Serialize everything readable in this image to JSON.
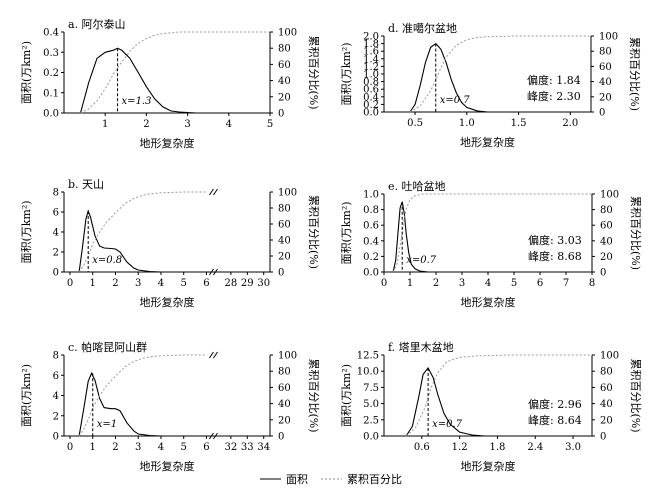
{
  "legend": {
    "area_label": "面积",
    "cum_label": "累积百分比"
  },
  "chart_data": [
    {
      "id": "a",
      "type": "line",
      "title": "a. 阿尔泰山",
      "xlabel": "地形复杂度",
      "ylabel": "面积(万km²)",
      "y2label": "累积百分比(%)",
      "xlim": [
        0,
        5
      ],
      "ylim": [
        0,
        0.4
      ],
      "y2lim": [
        0,
        100
      ],
      "xticks": [
        1,
        2,
        3,
        4,
        5
      ],
      "xtick_labels": [
        "1",
        "2",
        "3",
        "4",
        "5"
      ],
      "yticks": [
        0,
        0.1,
        0.2,
        0.3,
        0.4
      ],
      "ytick_labels": [
        "0.0",
        "0.1",
        "0.2",
        "0.3",
        "0.4"
      ],
      "y2ticks": [
        0,
        20,
        40,
        60,
        80,
        100
      ],
      "peak_x": 1.3,
      "peak_label": "x=1.3",
      "series": [
        {
          "name": "面积",
          "x": [
            0.4,
            0.6,
            0.8,
            1.0,
            1.2,
            1.3,
            1.4,
            1.6,
            1.8,
            2.0,
            2.2,
            2.4,
            2.6,
            2.8,
            3.0,
            3.2
          ],
          "y": [
            0,
            0.15,
            0.27,
            0.3,
            0.31,
            0.32,
            0.31,
            0.27,
            0.2,
            0.13,
            0.07,
            0.03,
            0.01,
            0.005,
            0.002,
            0
          ]
        },
        {
          "name": "累积百分比",
          "x": [
            0.4,
            0.6,
            0.8,
            1.0,
            1.2,
            1.4,
            1.6,
            1.8,
            2.0,
            2.2,
            2.4,
            2.6,
            2.8,
            3.0,
            4.0,
            5.0
          ],
          "y": [
            0,
            5,
            15,
            30,
            48,
            63,
            76,
            86,
            92,
            96,
            98,
            99,
            100,
            100,
            100,
            100
          ],
          "y_axis": "right"
        }
      ]
    },
    {
      "id": "b",
      "type": "line",
      "title": "b. 天山",
      "xlabel": "地形复杂度",
      "ylabel": "面积(万km²)",
      "y2label": "累积百分比(%)",
      "ylim": [
        0,
        8
      ],
      "y2lim": [
        0,
        100
      ],
      "xticks_labels": [
        "0",
        "1",
        "2",
        "3",
        "4",
        "5",
        "6",
        "28",
        "29",
        "30"
      ],
      "yticks": [
        0,
        2,
        4,
        6,
        8
      ],
      "y2ticks": [
        0,
        20,
        40,
        60,
        80,
        100
      ],
      "axis_break": true,
      "peak_x": 0.8,
      "peak_label": "x=0.8",
      "series": [
        {
          "name": "面积",
          "x": [
            0.4,
            0.55,
            0.7,
            0.8,
            0.9,
            1.1,
            1.3,
            1.5,
            1.8,
            2.0,
            2.2,
            2.5,
            2.8,
            3.0,
            3.5,
            4.0
          ],
          "y": [
            0,
            2.5,
            5.3,
            6.1,
            5.5,
            3.6,
            2.6,
            2.4,
            2.35,
            2.3,
            2.0,
            1.0,
            0.4,
            0.2,
            0.05,
            0
          ]
        },
        {
          "name": "累积百分比",
          "x": [
            0.4,
            0.6,
            0.8,
            1.0,
            1.3,
            1.6,
            2.0,
            2.4,
            2.8,
            3.2,
            3.6,
            4.0,
            5.0,
            6.0
          ],
          "y": [
            0,
            8,
            20,
            35,
            50,
            62,
            74,
            85,
            92,
            96,
            98,
            99,
            100,
            100
          ],
          "y_axis": "right"
        }
      ]
    },
    {
      "id": "c",
      "type": "line",
      "title": "c. 帕喀昆阿山群",
      "xlabel": "地形复杂度",
      "ylabel": "面积(万km²)",
      "y2label": "累积百分比(%)",
      "ylim": [
        0,
        8
      ],
      "y2lim": [
        0,
        100
      ],
      "xticks_labels": [
        "0",
        "1",
        "2",
        "3",
        "4",
        "5",
        "6",
        "32",
        "33",
        "34"
      ],
      "yticks": [
        0,
        2,
        4,
        6,
        8
      ],
      "y2ticks": [
        0,
        20,
        40,
        60,
        80,
        100
      ],
      "axis_break": true,
      "peak_x": 1,
      "peak_label": "x=1",
      "series": [
        {
          "name": "面积",
          "x": [
            0.4,
            0.6,
            0.8,
            0.95,
            1.1,
            1.3,
            1.5,
            1.8,
            2.0,
            2.2,
            2.5,
            2.8,
            3.0,
            3.5,
            4.0
          ],
          "y": [
            0,
            2.6,
            5.4,
            6.2,
            5.5,
            3.7,
            2.8,
            2.7,
            2.7,
            2.5,
            1.3,
            0.5,
            0.2,
            0.05,
            0
          ]
        },
        {
          "name": "累积百分比",
          "x": [
            0.4,
            0.6,
            0.8,
            1.0,
            1.3,
            1.6,
            2.0,
            2.4,
            2.8,
            3.2,
            3.6,
            4.0,
            5.0,
            6.0
          ],
          "y": [
            0,
            8,
            20,
            35,
            50,
            62,
            74,
            85,
            92,
            96,
            98,
            99,
            100,
            100
          ],
          "y_axis": "right"
        }
      ]
    },
    {
      "id": "d",
      "type": "line",
      "title": "d. 准噶尔盆地",
      "xlabel": "地形复杂度",
      "ylabel": "面积(万km²)",
      "y2label": "累积百分比(%)",
      "xlim": [
        0.2,
        2.2
      ],
      "ylim": [
        0,
        2.0
      ],
      "y2lim": [
        0,
        100
      ],
      "xticks": [
        0.5,
        1.0,
        1.5,
        2.0
      ],
      "xtick_labels": [
        "0.5",
        "1.0",
        "1.5",
        "2.0"
      ],
      "yticks": [
        0,
        0.2,
        0.4,
        0.6,
        0.8,
        1.0,
        1.2,
        1.4,
        1.6,
        1.8,
        2.0
      ],
      "ytick_labels": [
        "0.0",
        "0.2",
        "0.4",
        "0.6",
        "0.8",
        "1.0",
        "1.2",
        "1.4",
        "1.6",
        "1.8",
        "2.0"
      ],
      "y2ticks": [
        0,
        20,
        40,
        60,
        80,
        100
      ],
      "peak_x": 0.7,
      "peak_label": "x=0.7",
      "stats": {
        "skew_label": "偏度:",
        "skew": "1.84",
        "kurt_label": "峰度:",
        "kurt": "2.30"
      },
      "series": [
        {
          "name": "面积",
          "x": [
            0.45,
            0.5,
            0.55,
            0.6,
            0.65,
            0.7,
            0.75,
            0.8,
            0.85,
            0.9,
            0.95,
            1.0,
            1.1,
            1.2
          ],
          "y": [
            0,
            0.2,
            0.7,
            1.3,
            1.7,
            1.8,
            1.65,
            1.3,
            0.85,
            0.5,
            0.25,
            0.12,
            0.03,
            0
          ]
        },
        {
          "name": "累积百分比",
          "x": [
            0.45,
            0.55,
            0.65,
            0.7,
            0.75,
            0.8,
            0.9,
            1.0,
            1.1,
            1.2,
            1.5,
            2.2
          ],
          "y": [
            0,
            8,
            28,
            42,
            58,
            72,
            88,
            95,
            98,
            99,
            100,
            100
          ],
          "y_axis": "right"
        }
      ]
    },
    {
      "id": "e",
      "type": "line",
      "title": "e. 吐哈盆地",
      "xlabel": "地形复杂度",
      "ylabel": "面积(万km²)",
      "y2label": "累积百分比(%)",
      "xlim": [
        0,
        8
      ],
      "ylim": [
        0,
        1.0
      ],
      "y2lim": [
        0,
        100
      ],
      "xticks": [
        0,
        1,
        2,
        3,
        4,
        5,
        6,
        7,
        8
      ],
      "xtick_labels": [
        "0",
        "1",
        "2",
        "3",
        "4",
        "5",
        "6",
        "7",
        "8"
      ],
      "yticks": [
        0,
        0.2,
        0.4,
        0.6,
        0.8,
        1.0
      ],
      "ytick_labels": [
        "0.0",
        "0.2",
        "0.4",
        "0.6",
        "0.8",
        "1.0"
      ],
      "y2ticks": [
        0,
        20,
        40,
        60,
        80,
        100
      ],
      "peak_x": 0.7,
      "peak_label": "x=0.7",
      "stats": {
        "skew_label": "偏度:",
        "skew": "3.03",
        "kurt_label": "峰度:",
        "kurt": "8.68"
      },
      "series": [
        {
          "name": "面积",
          "x": [
            0.35,
            0.45,
            0.55,
            0.62,
            0.7,
            0.78,
            0.85,
            0.95,
            1.05,
            1.2,
            1.4,
            1.7
          ],
          "y": [
            0,
            0.15,
            0.55,
            0.82,
            0.9,
            0.75,
            0.5,
            0.25,
            0.1,
            0.04,
            0.01,
            0
          ]
        },
        {
          "name": "累积百分比",
          "x": [
            0.35,
            0.5,
            0.65,
            0.75,
            0.85,
            1.0,
            1.2,
            1.5,
            2.0,
            8.0
          ],
          "y": [
            0,
            10,
            40,
            62,
            80,
            93,
            98,
            100,
            100,
            100
          ],
          "y_axis": "right"
        }
      ]
    },
    {
      "id": "f",
      "type": "line",
      "title": "f. 塔里木盆地",
      "xlabel": "地形复杂度",
      "ylabel": "面积(万km²)",
      "y2label": "累积百分比(%)",
      "xlim": [
        0,
        3.3
      ],
      "ylim": [
        0,
        12.5
      ],
      "y2lim": [
        0,
        100
      ],
      "xticks": [
        0.6,
        1.2,
        1.8,
        2.4,
        3.0
      ],
      "xtick_labels": [
        "0.6",
        "1.2",
        "1.8",
        "2.4",
        "3.0"
      ],
      "yticks": [
        0,
        2.5,
        5.0,
        7.5,
        10.0,
        12.5
      ],
      "ytick_labels": [
        "0.0",
        "2.5",
        "5.0",
        "7.5",
        "10.0",
        "12.5"
      ],
      "y2ticks": [
        0,
        20,
        40,
        60,
        80,
        100
      ],
      "peak_x": 0.7,
      "peak_label": "x=0.7",
      "stats": {
        "skew_label": "偏度:",
        "skew": "2.96",
        "kurt_label": "峰度:",
        "kurt": "8.64"
      },
      "series": [
        {
          "name": "面积",
          "x": [
            0.35,
            0.45,
            0.55,
            0.62,
            0.7,
            0.78,
            0.85,
            0.95,
            1.05,
            1.2,
            1.4,
            1.6
          ],
          "y": [
            0,
            1.5,
            6.0,
            9.5,
            10.5,
            9.0,
            6.5,
            3.5,
            1.8,
            0.6,
            0.15,
            0
          ]
        },
        {
          "name": "累积百分比",
          "x": [
            0.35,
            0.5,
            0.65,
            0.75,
            0.85,
            1.0,
            1.2,
            1.5,
            2.0,
            3.3
          ],
          "y": [
            0,
            10,
            35,
            60,
            78,
            92,
            97,
            99,
            100,
            100
          ],
          "y_axis": "right"
        }
      ]
    }
  ]
}
